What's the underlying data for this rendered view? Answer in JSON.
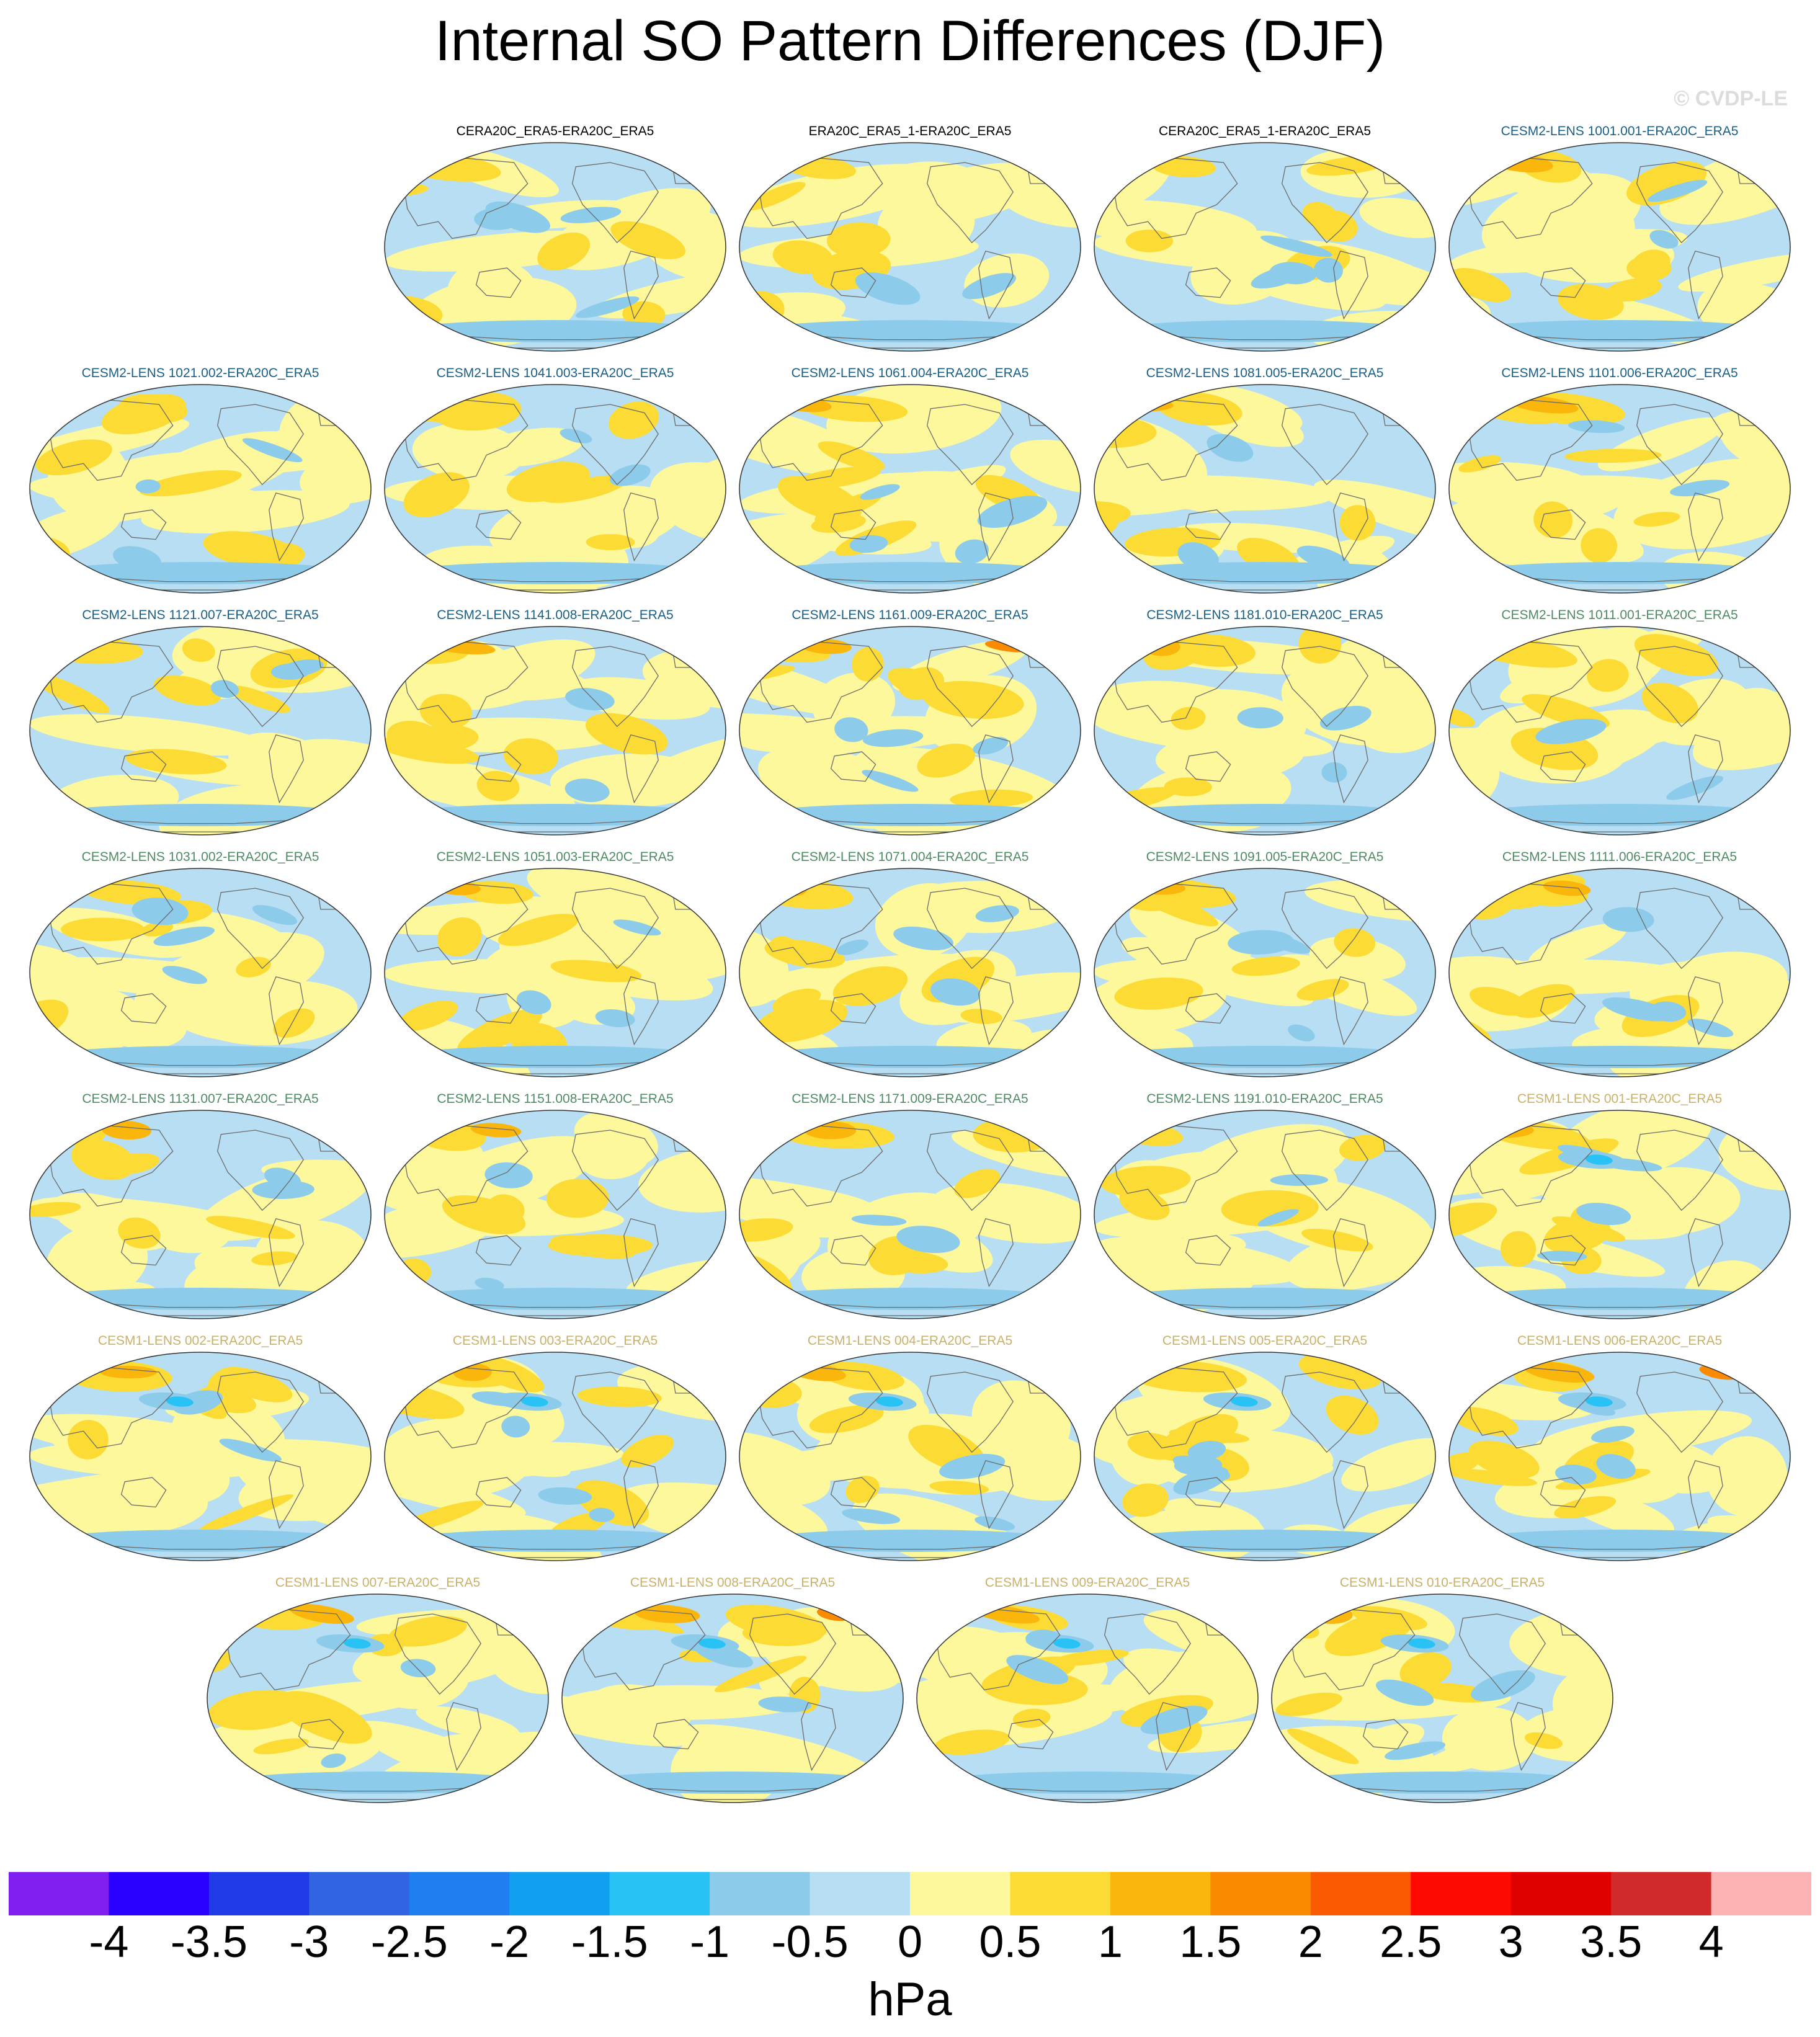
{
  "title": "Internal SO Pattern Differences (DJF)",
  "watermark": "© CVDP-LE",
  "colors": {
    "ocean_base": "#b7def2",
    "title_obs": "#000000",
    "title_cesm2_a": "#1a5f86",
    "title_cesm2_b": "#4f8a64",
    "title_cesm1": "#c8b16a"
  },
  "chart_data": {
    "type": "heatmap",
    "projection": "robinson",
    "variable": "sea level pressure difference",
    "units_label": "hPa",
    "colorbar": {
      "ticks": [
        "-4",
        "-3.5",
        "-3",
        "-2.5",
        "-2",
        "-1.5",
        "-1",
        "-0.5",
        "0",
        "0.5",
        "1",
        "1.5",
        "2",
        "2.5",
        "3",
        "3.5",
        "4"
      ],
      "colors": [
        "#7f1ff0",
        "#2a00ff",
        "#1f3be8",
        "#3064e0",
        "#1f7ff0",
        "#11a0f0",
        "#29c2f5",
        "#8dcbeb",
        "#b7def2",
        "#fdf89b",
        "#fcdc34",
        "#fbb60c",
        "#fb8a00",
        "#fb5a00",
        "#ff0a00",
        "#e00000",
        "#d12a2a",
        "#fdb3b3"
      ]
    },
    "panels": [
      {
        "title": "CERA20C_ERA5-ERA20C_ERA5",
        "group": "obs",
        "warm": 0.25,
        "seed": 3
      },
      {
        "title": "ERA20C_ERA5_1-ERA20C_ERA5",
        "group": "obs",
        "warm": 0.18,
        "seed": 7
      },
      {
        "title": "CERA20C_ERA5_1-ERA20C_ERA5",
        "group": "obs",
        "warm": 0.2,
        "seed": 11
      },
      {
        "title": "CESM2-LENS 1001.001-ERA20C_ERA5",
        "group": "cesm2_a",
        "warm": 0.32,
        "seed": 13
      },
      {
        "title": "CESM2-LENS 1021.002-ERA20C_ERA5",
        "group": "cesm2_a",
        "warm": 0.3,
        "seed": 17
      },
      {
        "title": "CESM2-LENS 1041.003-ERA20C_ERA5",
        "group": "cesm2_a",
        "warm": 0.3,
        "seed": 19
      },
      {
        "title": "CESM2-LENS 1061.004-ERA20C_ERA5",
        "group": "cesm2_a",
        "warm": 0.34,
        "seed": 23
      },
      {
        "title": "CESM2-LENS 1081.005-ERA20C_ERA5",
        "group": "cesm2_a",
        "warm": 0.33,
        "seed": 29
      },
      {
        "title": "CESM2-LENS 1101.006-ERA20C_ERA5",
        "group": "cesm2_a",
        "warm": 0.31,
        "seed": 31
      },
      {
        "title": "CESM2-LENS 1121.007-ERA20C_ERA5",
        "group": "cesm2_a",
        "warm": 0.3,
        "seed": 37
      },
      {
        "title": "CESM2-LENS 1141.008-ERA20C_ERA5",
        "group": "cesm2_a",
        "warm": 0.34,
        "seed": 41
      },
      {
        "title": "CESM2-LENS 1161.009-ERA20C_ERA5",
        "group": "cesm2_a",
        "warm": 0.36,
        "seed": 43
      },
      {
        "title": "CESM2-LENS 1181.010-ERA20C_ERA5",
        "group": "cesm2_a",
        "warm": 0.32,
        "seed": 47
      },
      {
        "title": "CESM2-LENS 1011.001-ERA20C_ERA5",
        "group": "cesm2_b",
        "warm": 0.3,
        "seed": 53
      },
      {
        "title": "CESM2-LENS 1031.002-ERA20C_ERA5",
        "group": "cesm2_b",
        "warm": 0.3,
        "seed": 59
      },
      {
        "title": "CESM2-LENS 1051.003-ERA20C_ERA5",
        "group": "cesm2_b",
        "warm": 0.31,
        "seed": 61
      },
      {
        "title": "CESM2-LENS 1071.004-ERA20C_ERA5",
        "group": "cesm2_b",
        "warm": 0.34,
        "seed": 67
      },
      {
        "title": "CESM2-LENS 1091.005-ERA20C_ERA5",
        "group": "cesm2_b",
        "warm": 0.32,
        "seed": 71
      },
      {
        "title": "CESM2-LENS 1111.006-ERA20C_ERA5",
        "group": "cesm2_b",
        "warm": 0.33,
        "seed": 73
      },
      {
        "title": "CESM2-LENS 1131.007-ERA20C_ERA5",
        "group": "cesm2_b",
        "warm": 0.31,
        "seed": 79
      },
      {
        "title": "CESM2-LENS 1151.008-ERA20C_ERA5",
        "group": "cesm2_b",
        "warm": 0.33,
        "seed": 83
      },
      {
        "title": "CESM2-LENS 1171.009-ERA20C_ERA5",
        "group": "cesm2_b",
        "warm": 0.32,
        "seed": 89
      },
      {
        "title": "CESM2-LENS 1191.010-ERA20C_ERA5",
        "group": "cesm2_b",
        "warm": 0.3,
        "seed": 97
      },
      {
        "title": "CESM1-LENS 001-ERA20C_ERA5",
        "group": "cesm1",
        "warm": 0.36,
        "seed": 101
      },
      {
        "title": "CESM1-LENS 002-ERA20C_ERA5",
        "group": "cesm1",
        "warm": 0.33,
        "seed": 103
      },
      {
        "title": "CESM1-LENS 003-ERA20C_ERA5",
        "group": "cesm1",
        "warm": 0.37,
        "seed": 107
      },
      {
        "title": "CESM1-LENS 004-ERA20C_ERA5",
        "group": "cesm1",
        "warm": 0.33,
        "seed": 109
      },
      {
        "title": "CESM1-LENS 005-ERA20C_ERA5",
        "group": "cesm1",
        "warm": 0.35,
        "seed": 113
      },
      {
        "title": "CESM1-LENS 006-ERA20C_ERA5",
        "group": "cesm1",
        "warm": 0.36,
        "seed": 127
      },
      {
        "title": "CESM1-LENS 007-ERA20C_ERA5",
        "group": "cesm1",
        "warm": 0.32,
        "seed": 131
      },
      {
        "title": "CESM1-LENS 008-ERA20C_ERA5",
        "group": "cesm1",
        "warm": 0.4,
        "seed": 137
      },
      {
        "title": "CESM1-LENS 009-ERA20C_ERA5",
        "group": "cesm1",
        "warm": 0.35,
        "seed": 139
      },
      {
        "title": "CESM1-LENS 010-ERA20C_ERA5",
        "group": "cesm1",
        "warm": 0.34,
        "seed": 149
      }
    ]
  }
}
